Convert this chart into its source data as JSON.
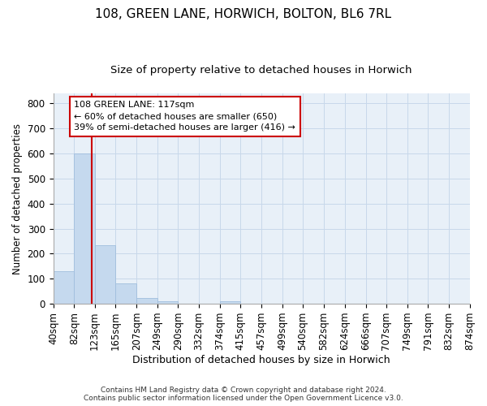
{
  "title_line1": "108, GREEN LANE, HORWICH, BOLTON, BL6 7RL",
  "title_line2": "Size of property relative to detached houses in Horwich",
  "xlabel": "Distribution of detached houses by size in Horwich",
  "ylabel": "Number of detached properties",
  "footnote1": "Contains HM Land Registry data © Crown copyright and database right 2024.",
  "footnote2": "Contains public sector information licensed under the Open Government Licence v3.0.",
  "bin_edges": [
    40,
    82,
    123,
    165,
    207,
    249,
    290,
    332,
    374,
    415,
    457,
    499,
    540,
    582,
    624,
    666,
    707,
    749,
    791,
    832,
    874
  ],
  "bar_heights": [
    130,
    600,
    235,
    80,
    22,
    10,
    0,
    0,
    10,
    0,
    0,
    0,
    0,
    0,
    0,
    0,
    0,
    0,
    0,
    0
  ],
  "bar_color": "#c5d9ee",
  "bar_edgecolor": "#a0bedd",
  "grid_color": "#c8d8ea",
  "bg_color": "#e8f0f8",
  "red_line_x": 117,
  "red_line_color": "#cc0000",
  "annotation_text": "108 GREEN LANE: 117sqm\n← 60% of detached houses are smaller (650)\n39% of semi-detached houses are larger (416) →",
  "annotation_box_color": "#cc0000",
  "ylim": [
    0,
    840
  ],
  "yticks": [
    0,
    100,
    200,
    300,
    400,
    500,
    600,
    700,
    800
  ],
  "tick_label_fontsize": 8.5,
  "title1_fontsize": 11,
  "title2_fontsize": 9.5,
  "xlabel_fontsize": 9,
  "ylabel_fontsize": 8.5,
  "annotation_fontsize": 8,
  "footnote_fontsize": 6.5
}
